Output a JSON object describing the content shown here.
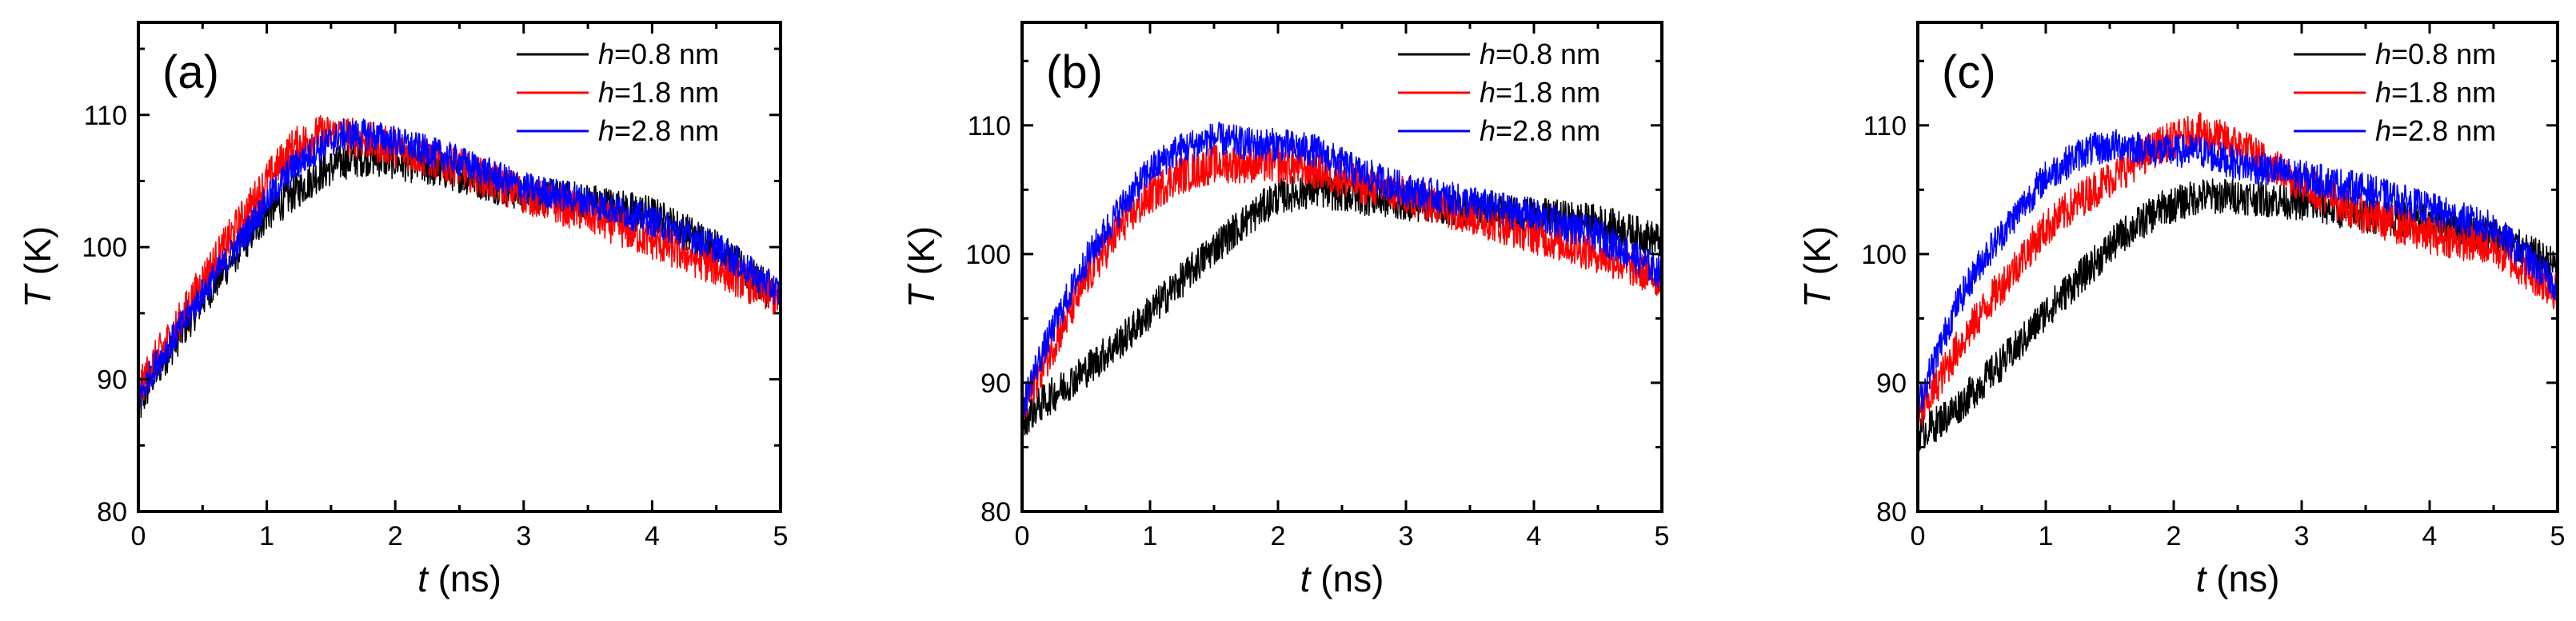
{
  "chart_data": [
    {
      "type": "line",
      "panel_label": "(a)",
      "title": "",
      "xlabel": {
        "var": "t",
        "unit": " (ns)"
      },
      "ylabel": {
        "var": "T",
        "unit": " (K)"
      },
      "xlim": [
        0,
        5
      ],
      "ylim": [
        80,
        117
      ],
      "xticks": [
        0,
        1,
        2,
        3,
        4,
        5
      ],
      "yticks": [
        80,
        90,
        100,
        110
      ],
      "legend_position": "top-right",
      "series": [
        {
          "name": "h=0.8 nm",
          "label_var": "h",
          "label_rest": "=0.8 nm",
          "color": "#000000",
          "x": [
            0,
            0.1,
            0.3,
            0.5,
            0.8,
            1.0,
            1.2,
            1.4,
            1.6,
            1.8,
            2.0,
            2.5,
            3.0,
            3.5,
            4.0,
            4.5,
            5.0
          ],
          "values": [
            87.5,
            90.0,
            93.0,
            96.0,
            100.0,
            102.5,
            104.0,
            105.5,
            106.5,
            106.8,
            106.5,
            105.5,
            104.0,
            103.5,
            102.5,
            100.0,
            96.0
          ],
          "noise": 1.4
        },
        {
          "name": "h=1.8 nm",
          "label_var": "h",
          "label_rest": "=1.8 nm",
          "color": "#ff0000",
          "x": [
            0,
            0.1,
            0.3,
            0.5,
            0.8,
            1.0,
            1.2,
            1.4,
            1.6,
            1.8,
            2.0,
            2.5,
            3.0,
            3.5,
            4.0,
            4.5,
            5.0
          ],
          "values": [
            89.0,
            91.0,
            94.0,
            97.5,
            102.0,
            105.0,
            107.5,
            108.5,
            108.5,
            108.0,
            107.5,
            106.0,
            104.0,
            102.5,
            100.5,
            98.5,
            96.0
          ],
          "noise": 1.5
        },
        {
          "name": "h=2.8 nm",
          "label_var": "h",
          "label_rest": "=2.8 nm",
          "color": "#0000ff",
          "x": [
            0,
            0.1,
            0.3,
            0.5,
            0.8,
            1.0,
            1.2,
            1.4,
            1.6,
            1.8,
            2.0,
            2.5,
            3.0,
            3.5,
            4.0,
            4.5,
            5.0
          ],
          "values": [
            88.5,
            90.5,
            93.5,
            96.5,
            100.5,
            103.5,
            106.0,
            107.5,
            108.5,
            108.5,
            108.0,
            106.5,
            104.5,
            103.5,
            102.0,
            100.0,
            96.5
          ],
          "noise": 1.2
        }
      ]
    },
    {
      "type": "line",
      "panel_label": "(b)",
      "title": "",
      "xlabel": {
        "var": "t",
        "unit": " (ns)"
      },
      "ylabel": {
        "var": "T",
        "unit": " (K)"
      },
      "xlim": [
        0,
        5
      ],
      "ylim": [
        80,
        118
      ],
      "xticks": [
        0,
        1,
        2,
        3,
        4,
        5
      ],
      "yticks": [
        80,
        90,
        100,
        110
      ],
      "legend_position": "top-right",
      "series": [
        {
          "name": "h=0.8 nm",
          "label_var": "h",
          "label_rest": "=0.8 nm",
          "color": "#000000",
          "x": [
            0,
            0.1,
            0.3,
            0.5,
            0.8,
            1.0,
            1.2,
            1.5,
            1.8,
            2.0,
            2.3,
            2.6,
            3.0,
            3.5,
            4.0,
            4.5,
            5.0
          ],
          "values": [
            87.0,
            88.0,
            89.5,
            91.0,
            93.5,
            95.5,
            97.5,
            100.5,
            103.0,
            104.5,
            105.0,
            104.5,
            104.0,
            103.5,
            103.0,
            102.5,
            101.0
          ],
          "noise": 1.4
        },
        {
          "name": "h=1.8 nm",
          "label_var": "h",
          "label_rest": "=1.8 nm",
          "color": "#ff0000",
          "x": [
            0,
            0.1,
            0.3,
            0.5,
            0.8,
            1.0,
            1.2,
            1.5,
            1.8,
            2.0,
            2.3,
            2.6,
            3.0,
            3.5,
            4.0,
            4.5,
            5.0
          ],
          "values": [
            87.5,
            90.0,
            94.0,
            98.0,
            102.5,
            104.5,
            106.0,
            107.0,
            107.0,
            107.0,
            106.5,
            105.5,
            104.5,
            103.0,
            101.5,
            100.0,
            98.0
          ],
          "noise": 1.5
        },
        {
          "name": "h=2.8 nm",
          "label_var": "h",
          "label_rest": "=2.8 nm",
          "color": "#0000ff",
          "x": [
            0,
            0.1,
            0.3,
            0.5,
            0.8,
            1.0,
            1.2,
            1.5,
            1.8,
            2.0,
            2.3,
            2.6,
            3.0,
            3.5,
            4.0,
            4.5,
            5.0
          ],
          "values": [
            88.0,
            91.0,
            95.5,
            99.5,
            104.0,
            106.5,
            108.0,
            109.0,
            108.5,
            108.5,
            108.0,
            106.5,
            105.0,
            104.0,
            103.0,
            101.5,
            98.5
          ],
          "noise": 1.3
        }
      ]
    },
    {
      "type": "line",
      "panel_label": "(c)",
      "title": "",
      "xlabel": {
        "var": "t",
        "unit": " (ns)"
      },
      "ylabel": {
        "var": "T",
        "unit": " (K)"
      },
      "xlim": [
        0,
        5
      ],
      "ylim": [
        80,
        118
      ],
      "xticks": [
        0,
        1,
        2,
        3,
        4,
        5
      ],
      "yticks": [
        80,
        90,
        100,
        110
      ],
      "legend_position": "top-right",
      "series": [
        {
          "name": "h=0.8 nm",
          "label_var": "h",
          "label_rest": "=0.8 nm",
          "color": "#000000",
          "x": [
            0,
            0.1,
            0.3,
            0.5,
            0.8,
            1.0,
            1.3,
            1.6,
            1.9,
            2.2,
            2.5,
            3.0,
            3.5,
            4.0,
            4.5,
            5.0
          ],
          "values": [
            86.0,
            86.5,
            88.0,
            90.0,
            93.0,
            95.5,
            98.5,
            101.5,
            103.5,
            104.5,
            104.5,
            104.0,
            103.0,
            102.5,
            101.5,
            99.0
          ],
          "noise": 1.4
        },
        {
          "name": "h=1.8 nm",
          "label_var": "h",
          "label_rest": "=1.8 nm",
          "color": "#ff0000",
          "x": [
            0,
            0.1,
            0.3,
            0.5,
            0.8,
            1.0,
            1.3,
            1.6,
            1.9,
            2.2,
            2.5,
            3.0,
            3.5,
            4.0,
            4.5,
            5.0
          ],
          "values": [
            87.0,
            89.0,
            92.5,
            95.5,
            99.5,
            102.0,
            104.5,
            106.5,
            108.5,
            109.5,
            108.5,
            105.5,
            103.0,
            101.5,
            100.5,
            97.0
          ],
          "noise": 1.5
        },
        {
          "name": "h=2.8 nm",
          "label_var": "h",
          "label_rest": "=2.8 nm",
          "color": "#0000ff",
          "x": [
            0,
            0.1,
            0.3,
            0.5,
            0.8,
            1.0,
            1.3,
            1.6,
            1.9,
            2.2,
            2.5,
            3.0,
            3.5,
            4.0,
            4.5,
            5.0
          ],
          "values": [
            88.0,
            91.0,
            96.0,
            99.5,
            103.5,
            106.0,
            108.0,
            108.5,
            108.0,
            108.0,
            107.0,
            106.0,
            105.0,
            103.5,
            102.0,
            97.5
          ],
          "noise": 1.3
        }
      ]
    }
  ]
}
